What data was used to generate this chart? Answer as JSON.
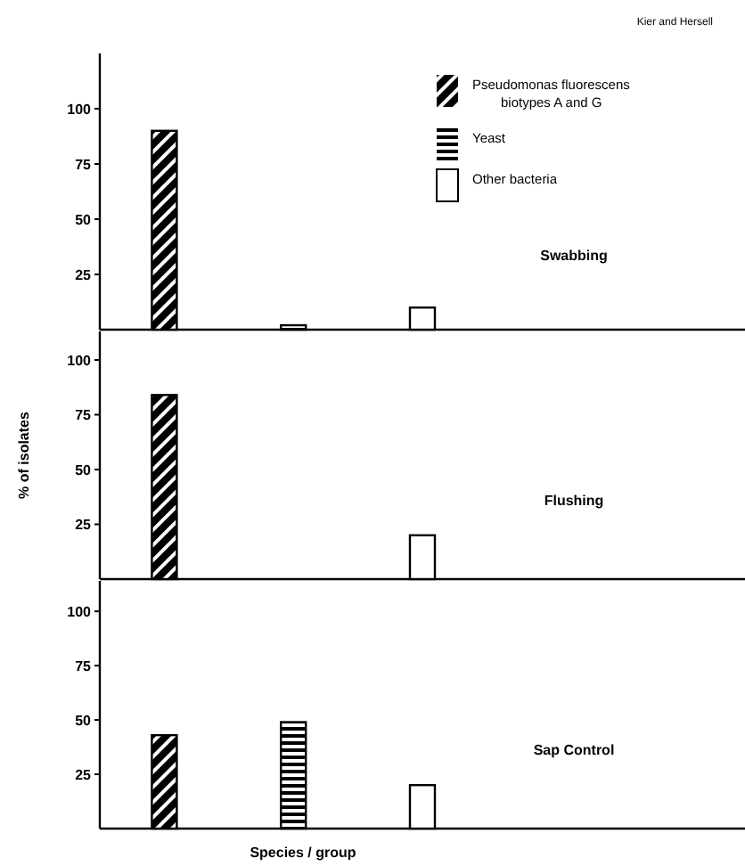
{
  "chart_data": [
    {
      "type": "bar",
      "title": "Swabbing",
      "annotations": [
        "Kier and Hersell"
      ],
      "categories": [
        null,
        null,
        null,
        null,
        null
      ],
      "ylim": [
        0,
        125
      ],
      "yticks": [
        25,
        50,
        75,
        100
      ],
      "legend": "top right",
      "series": [
        {
          "name": "Pseudomonas fluorescens biotypes A and G",
          "color": "#000000",
          "values": [
            90,
            null,
            null,
            null,
            null
          ]
        },
        {
          "name": "Yeast",
          "color": "#000000",
          "values": [
            null,
            2,
            null,
            null,
            null
          ]
        },
        {
          "name": "Other bacteria",
          "color": "#ffffff",
          "values": [
            null,
            null,
            10,
            null,
            null
          ]
        }
      ]
    },
    {
      "type": "bar",
      "title": "Flushing",
      "ylabel": "% of isolates",
      "categories": [
        null,
        null,
        null,
        null,
        null
      ],
      "ylim": [
        0,
        113
      ],
      "yticks": [
        25,
        50,
        75,
        100
      ],
      "series": [
        {
          "color": "#000000",
          "values": [
            84,
            null,
            null,
            null,
            null
          ]
        },
        {
          "color": "#000000",
          "values": [
            null,
            0,
            null,
            null,
            null
          ]
        },
        {
          "color": "#ffffff",
          "values": [
            null,
            null,
            20,
            null,
            null
          ]
        }
      ]
    },
    {
      "type": "bar",
      "title": "Sap Control",
      "xlabel": "Species / group",
      "categories": [
        null,
        null,
        null,
        null,
        null
      ],
      "ylim": [
        0,
        114
      ],
      "yticks": [
        25,
        50,
        75,
        100
      ],
      "series": [
        {
          "color": "#000000",
          "values": [
            43,
            null,
            null,
            null,
            null
          ]
        },
        {
          "color": "#000000",
          "values": [
            null,
            49,
            null,
            null,
            null
          ]
        },
        {
          "color": "#ffffff",
          "values": [
            null,
            null,
            20,
            null,
            null
          ]
        }
      ]
    }
  ]
}
